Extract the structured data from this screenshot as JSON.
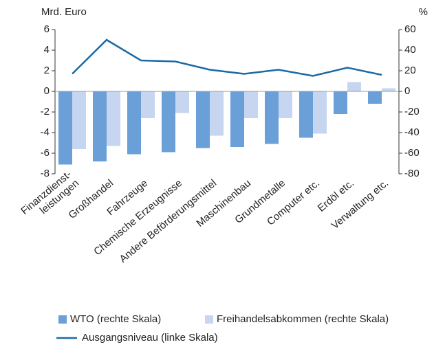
{
  "chart_data": {
    "type": "bar",
    "y_label": "Mrd. Euro",
    "y2_label": "%",
    "categories": [
      [
        "Finanzdienst-",
        "leistungen"
      ],
      "Großhandel",
      "Fahrzeuge",
      "Chemische Erzeugnisse",
      "Andere Beförderungsmittel",
      "Maschinenbau",
      "Grundmetalle",
      "Computer etc.",
      "Erdöl etc.",
      "Verwaltung etc."
    ],
    "series": [
      {
        "name": "WTO (rechte Skala)",
        "type": "bar",
        "axis": "y2",
        "color": "#6a9fd8",
        "values": [
          -71,
          -68,
          -61,
          -59,
          -55,
          -54,
          -51,
          -45,
          -22,
          -12
        ]
      },
      {
        "name": "Freihandelsabkommen (rechte Skala)",
        "type": "bar",
        "axis": "y2",
        "color": "#c6d5f0",
        "values": [
          -56,
          -53,
          -26,
          -21,
          -43,
          -26,
          -26,
          -41,
          9,
          3
        ]
      },
      {
        "name": "Ausgangsniveau (linke Skala)",
        "type": "line",
        "axis": "y",
        "color": "#1a6aa6",
        "values": [
          1.7,
          5.0,
          3.0,
          2.9,
          2.1,
          1.7,
          2.1,
          1.5,
          2.3,
          1.6
        ]
      }
    ],
    "ylim": [
      -8,
      6
    ],
    "yticks": [
      -8,
      -6,
      -4,
      -2,
      0,
      2,
      4,
      6
    ],
    "y2lim": [
      -80,
      60
    ],
    "y2ticks": [
      -80,
      -60,
      -40,
      -20,
      0,
      20,
      40,
      60
    ]
  }
}
